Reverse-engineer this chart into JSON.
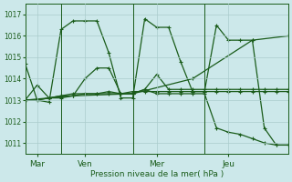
{
  "background_color": "#cce8ea",
  "grid_color": "#aacccc",
  "line_color": "#1a5c1a",
  "marker": "+",
  "ylabel_ticks": [
    1011,
    1012,
    1013,
    1014,
    1015,
    1016,
    1017
  ],
  "ylim": [
    1010.5,
    1017.5
  ],
  "xlabel": "Pression niveau de la mer( hPa )",
  "day_labels": [
    "Mar",
    "Ven",
    "Mer",
    "Jeu"
  ],
  "day_positions": [
    1,
    5,
    11,
    17
  ],
  "vline_positions": [
    3,
    9,
    15
  ],
  "series": [
    {
      "x": [
        0,
        1,
        2,
        3,
        4,
        5,
        6,
        7,
        8,
        9,
        10,
        11,
        12,
        13,
        14,
        15,
        16,
        17,
        18,
        19,
        20,
        21,
        22
      ],
      "y": [
        1014.7,
        1013.0,
        1012.9,
        1016.3,
        1016.7,
        1016.7,
        1016.7,
        1015.2,
        1013.1,
        1013.1,
        1016.8,
        1016.4,
        1016.4,
        1014.8,
        1013.4,
        1013.4,
        1016.5,
        1015.8,
        1015.8,
        1015.8,
        1011.7,
        1010.9,
        1010.9
      ]
    },
    {
      "x": [
        0,
        1,
        2,
        3,
        4,
        5,
        6,
        7,
        8,
        9,
        10,
        11,
        12,
        13,
        14,
        15,
        16,
        17,
        18,
        19,
        20,
        21,
        22
      ],
      "y": [
        1013.0,
        1013.0,
        1013.1,
        1013.2,
        1013.2,
        1013.3,
        1013.3,
        1013.3,
        1013.3,
        1013.4,
        1013.4,
        1013.4,
        1013.4,
        1013.4,
        1013.4,
        1013.4,
        1013.4,
        1013.4,
        1013.4,
        1013.4,
        1013.4,
        1013.4,
        1013.4
      ]
    },
    {
      "x": [
        0,
        1,
        2,
        3,
        4,
        5,
        6,
        7,
        8,
        9,
        10,
        11,
        12,
        13,
        14,
        15,
        16,
        17,
        18,
        19,
        20,
        21,
        22
      ],
      "y": [
        1013.0,
        1013.7,
        1013.1,
        1013.1,
        1013.2,
        1014.0,
        1014.5,
        1014.5,
        1013.3,
        1013.3,
        1013.5,
        1014.2,
        1013.5,
        1013.5,
        1013.5,
        1013.5,
        1013.5,
        1013.5,
        1013.5,
        1013.5,
        1013.5,
        1013.5,
        1013.5
      ]
    },
    {
      "x": [
        0,
        1,
        2,
        3,
        4,
        5,
        6,
        7,
        8,
        9,
        10,
        11,
        12,
        13,
        14,
        15,
        16,
        17,
        18,
        19,
        20,
        21,
        22
      ],
      "y": [
        1013.0,
        1013.0,
        1013.1,
        1013.2,
        1013.3,
        1013.3,
        1013.3,
        1013.4,
        1013.3,
        1013.3,
        1013.5,
        1013.3,
        1013.3,
        1013.3,
        1013.3,
        1013.3,
        1011.7,
        1011.5,
        1011.4,
        1011.2,
        1011.0,
        1010.9,
        1010.9
      ]
    },
    {
      "x": [
        0,
        4,
        9,
        14,
        19,
        22
      ],
      "y": [
        1013.0,
        1013.2,
        1013.3,
        1014.0,
        1015.8,
        1016.0
      ]
    }
  ],
  "num_points": 23,
  "xlim": [
    0,
    22
  ]
}
